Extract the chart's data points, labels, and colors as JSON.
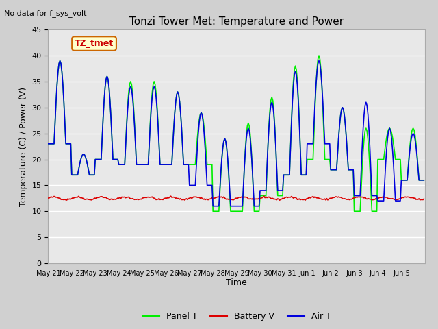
{
  "title": "Tonzi Tower Met: Temperature and Power",
  "top_left_text": "No data for f_sys_volt",
  "ylabel": "Temperature (C) / Power (V)",
  "xlabel": "Time",
  "ylim": [
    0,
    45
  ],
  "yticks": [
    0,
    5,
    10,
    15,
    20,
    25,
    30,
    35,
    40,
    45
  ],
  "x_labels": [
    "May 21",
    "May 22",
    "May 23",
    "May 24",
    "May 25",
    "May 26",
    "May 27",
    "May 28",
    "May 29",
    "May 30",
    "May 31",
    "Jun 1",
    "Jun 2",
    "Jun 3",
    "Jun 4",
    "Jun 5"
  ],
  "annotation_box": {
    "text": "TZ_tmet",
    "text_color": "#cc0000",
    "box_color": "#ffffcc",
    "edge_color": "#cc6600"
  },
  "legend": [
    {
      "label": "Panel T",
      "color": "#00ee00",
      "lw": 1.5
    },
    {
      "label": "Battery V",
      "color": "#dd0000",
      "lw": 1.5
    },
    {
      "label": "Air T",
      "color": "#0000dd",
      "lw": 1.5
    }
  ],
  "panel_t_color": "#00ee00",
  "battery_v_color": "#dd0000",
  "air_t_color": "#0000dd",
  "n_days": 16
}
